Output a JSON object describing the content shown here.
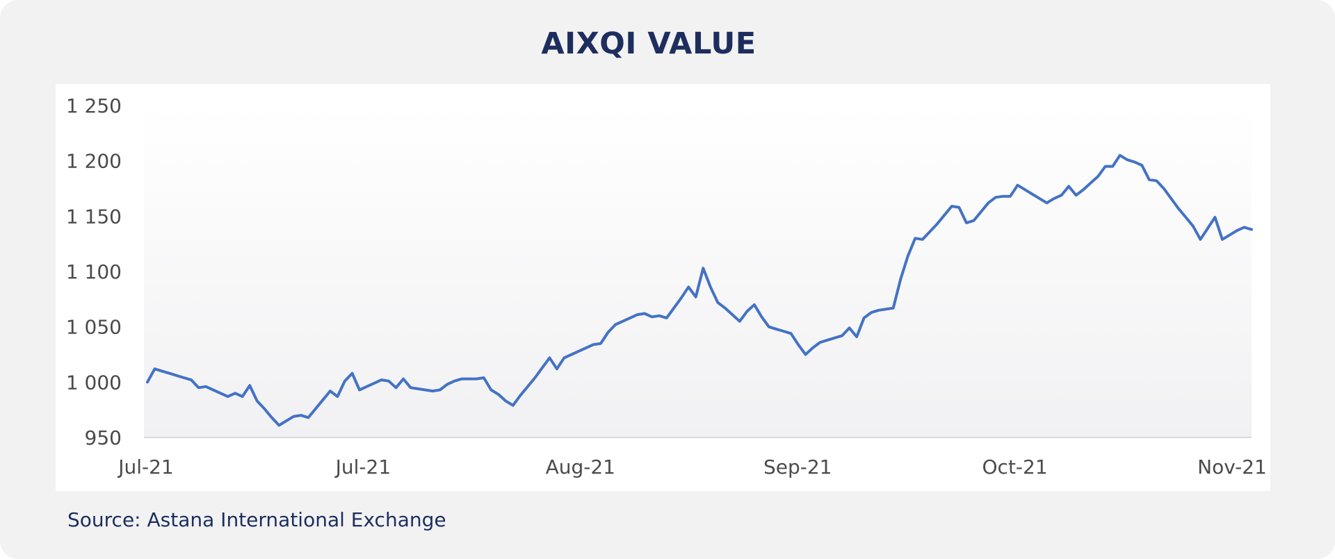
{
  "chart_data": {
    "type": "line",
    "title": "AIXQI VALUE",
    "xlabel": "",
    "ylabel": "",
    "ylim": [
      950,
      1250
    ],
    "yticks": [
      950,
      1000,
      1050,
      1100,
      1150,
      1200,
      1250
    ],
    "ytick_labels": [
      "950",
      "1 000",
      "1 050",
      "1 100",
      "1 150",
      "1 200",
      "1 250"
    ],
    "xtick_labels": [
      "Jul-21",
      "Jul-21",
      "Aug-21",
      "Sep-21",
      "Oct-21",
      "Nov-21"
    ],
    "grid": false,
    "legend": "none",
    "line_color": "#4472c4",
    "series": [
      {
        "values": [
          1000,
          1012,
          1010,
          1008,
          1006,
          1004,
          1002,
          995,
          996,
          993,
          990,
          987,
          990,
          987,
          997,
          983,
          976,
          968,
          961,
          965,
          969,
          970,
          968,
          976,
          984,
          992,
          987,
          1001,
          1008,
          993,
          996,
          999,
          1002,
          1001,
          995,
          1003,
          995,
          994,
          993,
          992,
          993,
          998,
          1001,
          1003,
          1003,
          1003,
          1004,
          993,
          989,
          983,
          979,
          988,
          996,
          1004,
          1013,
          1022,
          1012,
          1022,
          1025,
          1028,
          1031,
          1034,
          1035,
          1045,
          1052,
          1055,
          1058,
          1061,
          1062,
          1059,
          1060,
          1058,
          1067,
          1076,
          1086,
          1077,
          1103,
          1086,
          1072,
          1067,
          1061,
          1055,
          1064,
          1070,
          1059,
          1050,
          1048,
          1046,
          1044,
          1034,
          1025,
          1031,
          1036,
          1038,
          1040,
          1042,
          1049,
          1041,
          1058,
          1063,
          1065,
          1066,
          1067,
          1093,
          1114,
          1130,
          1129,
          1136,
          1143,
          1151,
          1159,
          1158,
          1144,
          1146,
          1154,
          1162,
          1167,
          1168,
          1168,
          1178,
          1174,
          1170,
          1166,
          1162,
          1166,
          1169,
          1177,
          1169,
          1174,
          1180,
          1186,
          1195,
          1195,
          1205,
          1201,
          1199,
          1196,
          1183,
          1182,
          1175,
          1166,
          1157,
          1149,
          1141,
          1129,
          1139,
          1149,
          1129,
          1133,
          1137,
          1140,
          1138
        ]
      }
    ]
  },
  "source_text": "Source: Astana International Exchange"
}
